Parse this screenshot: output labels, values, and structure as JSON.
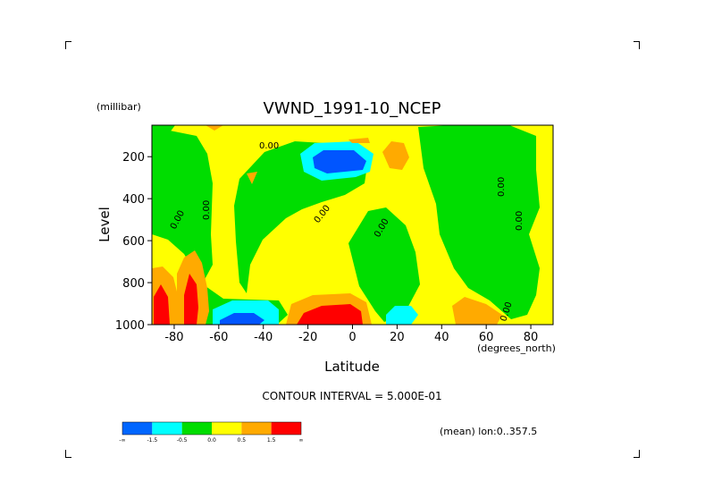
{
  "chart_data": {
    "type": "heatmap",
    "title": "VWND_1991-10_NCEP",
    "xlabel": "Latitude",
    "ylabel": "Level",
    "x_units": "(degrees_north)",
    "y_units": "(millibar)",
    "xlim": [
      -90,
      90
    ],
    "ylim": [
      1000,
      50
    ],
    "x_ticks": [
      -80,
      -60,
      -40,
      -20,
      0,
      20,
      40,
      60,
      80
    ],
    "y_ticks": [
      1000,
      800,
      600,
      400,
      200
    ],
    "contour_interval_text": "CONTOUR INTERVAL = 5.000E-01",
    "subset_text": "(mean) lon:0..357.5",
    "contour_label": "0.00",
    "colorbar": {
      "labels": [
        "-∞",
        "-1.5",
        "-0.5",
        "0.0",
        "0.5",
        "1.5",
        "∞"
      ],
      "colors": [
        "#0066ff",
        "#00ffff",
        "#00dd00",
        "#ffff00",
        "#ffaa00",
        "#ff0000"
      ]
    },
    "colors": {
      "very_negative": "#0055ff",
      "negative": "#00ffff",
      "slightly_negative": "#00dd00",
      "slightly_positive": "#ffff00",
      "positive": "#ffaa00",
      "very_positive": "#ff0000",
      "frame": "#000000"
    }
  }
}
